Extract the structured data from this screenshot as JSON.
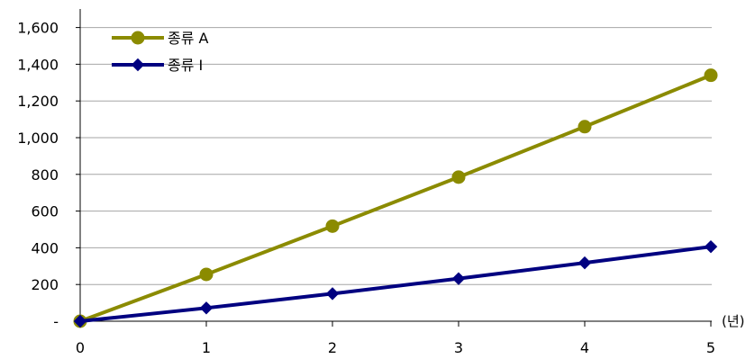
{
  "chart_data": {
    "type": "line",
    "x": [
      0,
      1,
      2,
      3,
      4,
      5
    ],
    "x_tick_labels": [
      "0",
      "1",
      "2",
      "3",
      "4",
      "5"
    ],
    "x_unit": "(년)",
    "ylim": [
      0,
      1700
    ],
    "y_ticks": [
      0,
      200,
      400,
      600,
      800,
      1000,
      1200,
      1400,
      1600
    ],
    "y_tick_labels": [
      "-",
      "200",
      "400",
      "600",
      "800",
      "1,000",
      "1,200",
      "1,400",
      "1,600"
    ],
    "grid": true,
    "legend_position": "top-left",
    "series": [
      {
        "name": "종류 A",
        "values": [
          0,
          255,
          518,
          785,
          1060,
          1340
        ],
        "color": "#8b8b00",
        "marker": "circle"
      },
      {
        "name": "종류 I",
        "values": [
          0,
          72,
          150,
          232,
          318,
          406
        ],
        "color": "#000080",
        "marker": "diamond"
      }
    ]
  }
}
